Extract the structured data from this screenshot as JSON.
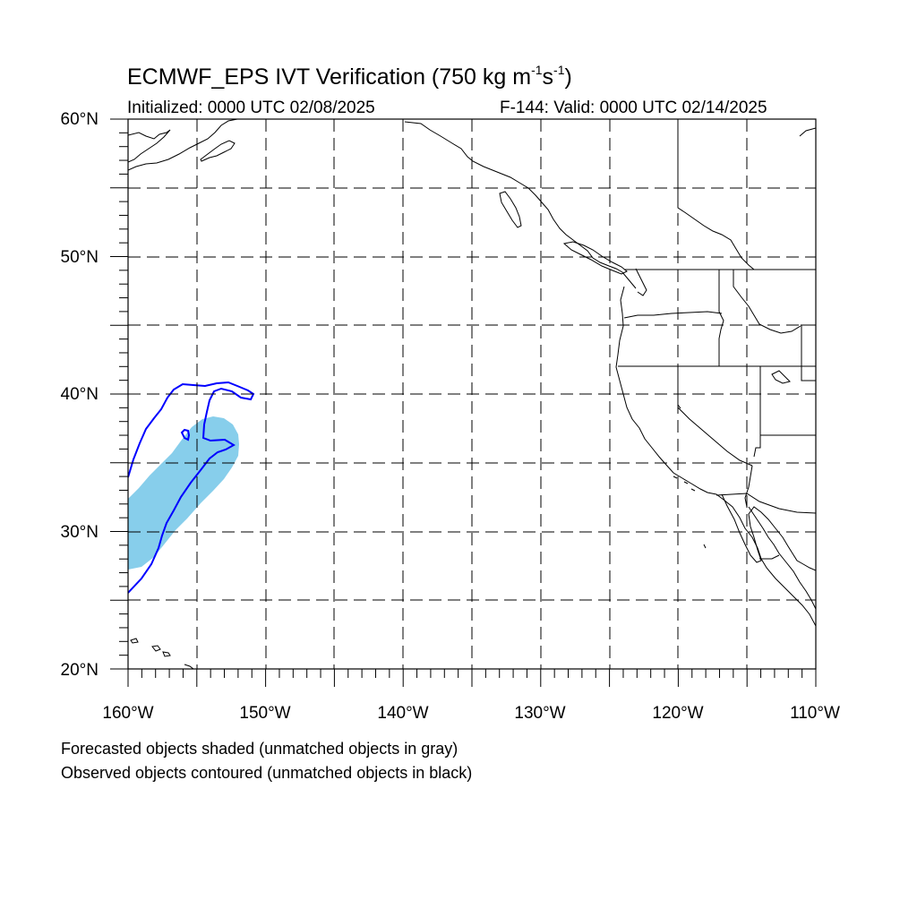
{
  "title": {
    "main": "ECMWF_EPS IVT Verification (750 kg m",
    "sup1": "-1",
    "mid": "s",
    "sup2": "-1",
    "end": ")"
  },
  "initialized": "Initialized: 0000 UTC 02/08/2025",
  "valid": "F-144: Valid: 0000 UTC 02/14/2025",
  "lat_labels": [
    "60°N",
    "50°N",
    "40°N",
    "30°N",
    "20°N"
  ],
  "lon_labels": [
    "160°W",
    "150°W",
    "140°W",
    "130°W",
    "120°W",
    "110°W"
  ],
  "footer": {
    "line1": "Forecasted objects shaded (unmatched objects in gray)",
    "line2": "Observed objects contoured (unmatched objects in black)"
  },
  "colors": {
    "forecast_fill": "#87ceeb",
    "observed_contour": "#0000ff",
    "grid": "#000000",
    "coast": "#000000"
  },
  "map_extent": {
    "lon_min": -160,
    "lon_max": -110,
    "lat_min": 20,
    "lat_max": 60
  }
}
